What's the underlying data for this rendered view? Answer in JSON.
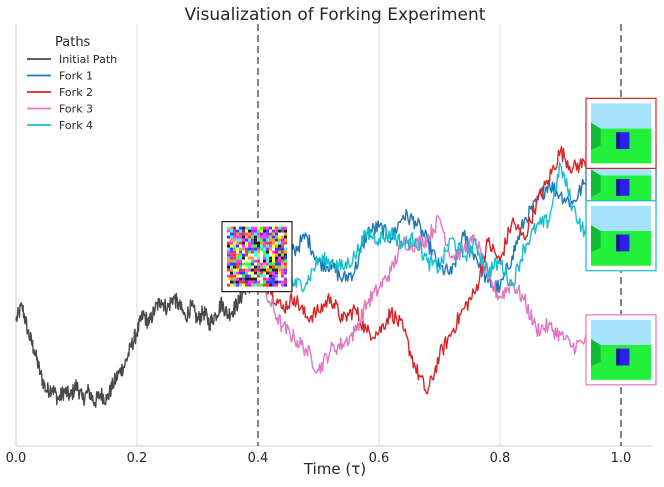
{
  "chart_data": {
    "type": "line",
    "title": "Visualization of Forking Experiment",
    "xlabel": "Time (τ)",
    "ylabel": "",
    "xlim": [
      0.0,
      1.05
    ],
    "x_ticks": [
      "0.0",
      "0.2",
      "0.4",
      "0.6",
      "0.8",
      "1.0"
    ],
    "x_tick_values": [
      0.0,
      0.2,
      0.4,
      0.6,
      0.8,
      1.0
    ],
    "grid": "vertical",
    "fork_time": 0.4,
    "end_time": 1.0,
    "legend": {
      "title": "Paths",
      "position": "top-left"
    },
    "series": [
      {
        "name": "Initial Path",
        "color": "#4a4a4a",
        "points": [
          [
            0.0,
            -0.1
          ],
          [
            0.01,
            0.15
          ],
          [
            0.02,
            -0.3
          ],
          [
            0.03,
            -0.6
          ],
          [
            0.04,
            -1.0
          ],
          [
            0.05,
            -1.3
          ],
          [
            0.06,
            -1.25
          ],
          [
            0.07,
            -1.45
          ],
          [
            0.08,
            -1.3
          ],
          [
            0.09,
            -1.4
          ],
          [
            0.1,
            -1.2
          ],
          [
            0.11,
            -1.45
          ],
          [
            0.12,
            -1.3
          ],
          [
            0.13,
            -1.5
          ],
          [
            0.14,
            -1.35
          ],
          [
            0.15,
            -1.45
          ],
          [
            0.16,
            -1.2
          ],
          [
            0.17,
            -1.0
          ],
          [
            0.18,
            -0.85
          ],
          [
            0.19,
            -0.55
          ],
          [
            0.2,
            -0.3
          ],
          [
            0.21,
            0.0
          ],
          [
            0.22,
            -0.15
          ],
          [
            0.23,
            0.1
          ],
          [
            0.24,
            0.25
          ],
          [
            0.25,
            0.1
          ],
          [
            0.26,
            0.3
          ],
          [
            0.27,
            0.15
          ],
          [
            0.28,
            -0.05
          ],
          [
            0.29,
            0.15
          ],
          [
            0.3,
            -0.1
          ],
          [
            0.31,
            0.05
          ],
          [
            0.32,
            -0.15
          ],
          [
            0.33,
            0.0
          ],
          [
            0.34,
            0.2
          ],
          [
            0.35,
            0.0
          ],
          [
            0.36,
            0.1
          ],
          [
            0.37,
            0.25
          ],
          [
            0.38,
            0.5
          ],
          [
            0.39,
            0.45
          ],
          [
            0.4,
            0.6
          ]
        ]
      },
      {
        "name": "Fork 1",
        "color": "#1f77b4",
        "points": [
          [
            0.4,
            0.6
          ],
          [
            0.42,
            0.9
          ],
          [
            0.44,
            1.5
          ],
          [
            0.46,
            1.1
          ],
          [
            0.48,
            1.35
          ],
          [
            0.5,
            0.9
          ],
          [
            0.52,
            0.85
          ],
          [
            0.54,
            0.6
          ],
          [
            0.56,
            0.75
          ],
          [
            0.58,
            1.4
          ],
          [
            0.6,
            1.5
          ],
          [
            0.62,
            1.3
          ],
          [
            0.64,
            1.7
          ],
          [
            0.66,
            1.6
          ],
          [
            0.68,
            1.25
          ],
          [
            0.7,
            0.8
          ],
          [
            0.72,
            0.7
          ],
          [
            0.74,
            1.35
          ],
          [
            0.76,
            1.0
          ],
          [
            0.78,
            0.55
          ],
          [
            0.8,
            0.45
          ],
          [
            0.82,
            1.0
          ],
          [
            0.84,
            1.6
          ],
          [
            0.86,
            1.9
          ],
          [
            0.88,
            2.25
          ],
          [
            0.9,
            2.05
          ],
          [
            0.92,
            1.9
          ],
          [
            0.94,
            2.25
          ],
          [
            0.96,
            2.0
          ],
          [
            0.98,
            1.7
          ],
          [
            1.0,
            2.3
          ]
        ]
      },
      {
        "name": "Fork 2",
        "color": "#d62728",
        "points": [
          [
            0.4,
            0.6
          ],
          [
            0.42,
            0.45
          ],
          [
            0.44,
            0.1
          ],
          [
            0.46,
            0.3
          ],
          [
            0.48,
            -0.05
          ],
          [
            0.5,
            0.05
          ],
          [
            0.52,
            0.3
          ],
          [
            0.54,
            -0.1
          ],
          [
            0.56,
            0.1
          ],
          [
            0.58,
            -0.3
          ],
          [
            0.6,
            -0.3
          ],
          [
            0.62,
            0.05
          ],
          [
            0.64,
            -0.25
          ],
          [
            0.66,
            -0.9
          ],
          [
            0.68,
            -1.35
          ],
          [
            0.7,
            -0.7
          ],
          [
            0.72,
            -0.3
          ],
          [
            0.74,
            0.1
          ],
          [
            0.76,
            0.4
          ],
          [
            0.78,
            1.25
          ],
          [
            0.8,
            0.9
          ],
          [
            0.82,
            1.6
          ],
          [
            0.84,
            1.3
          ],
          [
            0.86,
            1.9
          ],
          [
            0.88,
            2.3
          ],
          [
            0.9,
            2.8
          ],
          [
            0.92,
            2.5
          ],
          [
            0.94,
            2.6
          ],
          [
            0.96,
            3.05
          ],
          [
            0.98,
            2.9
          ],
          [
            1.0,
            3.1
          ]
        ]
      },
      {
        "name": "Fork 3",
        "color": "#e377c2",
        "points": [
          [
            0.4,
            0.6
          ],
          [
            0.42,
            0.2
          ],
          [
            0.44,
            -0.2
          ],
          [
            0.46,
            -0.4
          ],
          [
            0.48,
            -0.6
          ],
          [
            0.5,
            -0.95
          ],
          [
            0.52,
            -0.6
          ],
          [
            0.54,
            -0.5
          ],
          [
            0.56,
            -0.3
          ],
          [
            0.58,
            0.2
          ],
          [
            0.6,
            0.45
          ],
          [
            0.62,
            0.75
          ],
          [
            0.64,
            1.25
          ],
          [
            0.66,
            1.2
          ],
          [
            0.68,
            1.3
          ],
          [
            0.7,
            1.65
          ],
          [
            0.72,
            1.0
          ],
          [
            0.74,
            1.1
          ],
          [
            0.76,
            1.3
          ],
          [
            0.78,
            0.6
          ],
          [
            0.8,
            0.3
          ],
          [
            0.82,
            0.55
          ],
          [
            0.84,
            0.25
          ],
          [
            0.86,
            -0.25
          ],
          [
            0.88,
            -0.2
          ],
          [
            0.9,
            -0.35
          ],
          [
            0.92,
            -0.55
          ],
          [
            0.94,
            -0.45
          ],
          [
            0.96,
            -0.65
          ],
          [
            0.98,
            -0.5
          ],
          [
            1.0,
            -0.6
          ]
        ]
      },
      {
        "name": "Fork 4",
        "color": "#17becf",
        "points": [
          [
            0.4,
            0.6
          ],
          [
            0.42,
            0.75
          ],
          [
            0.44,
            1.15
          ],
          [
            0.46,
            0.5
          ],
          [
            0.48,
            0.55
          ],
          [
            0.5,
            0.95
          ],
          [
            0.52,
            0.9
          ],
          [
            0.54,
            0.8
          ],
          [
            0.56,
            1.0
          ],
          [
            0.58,
            1.4
          ],
          [
            0.6,
            1.3
          ],
          [
            0.62,
            1.4
          ],
          [
            0.64,
            1.2
          ],
          [
            0.66,
            1.3
          ],
          [
            0.68,
            0.9
          ],
          [
            0.7,
            0.8
          ],
          [
            0.72,
            1.3
          ],
          [
            0.74,
            1.0
          ],
          [
            0.76,
            1.2
          ],
          [
            0.78,
            0.75
          ],
          [
            0.8,
            0.9
          ],
          [
            0.82,
            0.5
          ],
          [
            0.84,
            1.15
          ],
          [
            0.86,
            1.5
          ],
          [
            0.88,
            1.6
          ],
          [
            0.9,
            2.55
          ],
          [
            0.92,
            1.85
          ],
          [
            0.94,
            1.4
          ],
          [
            0.96,
            1.35
          ],
          [
            0.98,
            1.3
          ],
          [
            1.0,
            1.35
          ]
        ]
      }
    ],
    "annotations": [
      {
        "label": "noise image at fork",
        "x": 0.4,
        "y": 0.6,
        "kind": "noise",
        "border": "#222222"
      },
      {
        "label": "Fork 1 end frame",
        "x": 1.0,
        "y": 2.3,
        "kind": "frame",
        "border": "#1f77b4"
      },
      {
        "label": "Fork 2 end frame",
        "x": 1.0,
        "y": 3.1,
        "kind": "frame",
        "border": "#d62728"
      },
      {
        "label": "Fork 4 end frame",
        "x": 1.0,
        "y": 1.35,
        "kind": "frame",
        "border": "#17becf"
      },
      {
        "label": "Fork 3 end frame",
        "x": 1.0,
        "y": -0.6,
        "kind": "frame",
        "border": "#e377c2"
      }
    ],
    "colors": {
      "grid": "#dddddd",
      "axis": "#cccccc",
      "vline": "#777777",
      "sky": "#a5e2fb",
      "ground": "#22f03a",
      "wall": "#11bb33",
      "cube": "#2a22e8"
    }
  }
}
